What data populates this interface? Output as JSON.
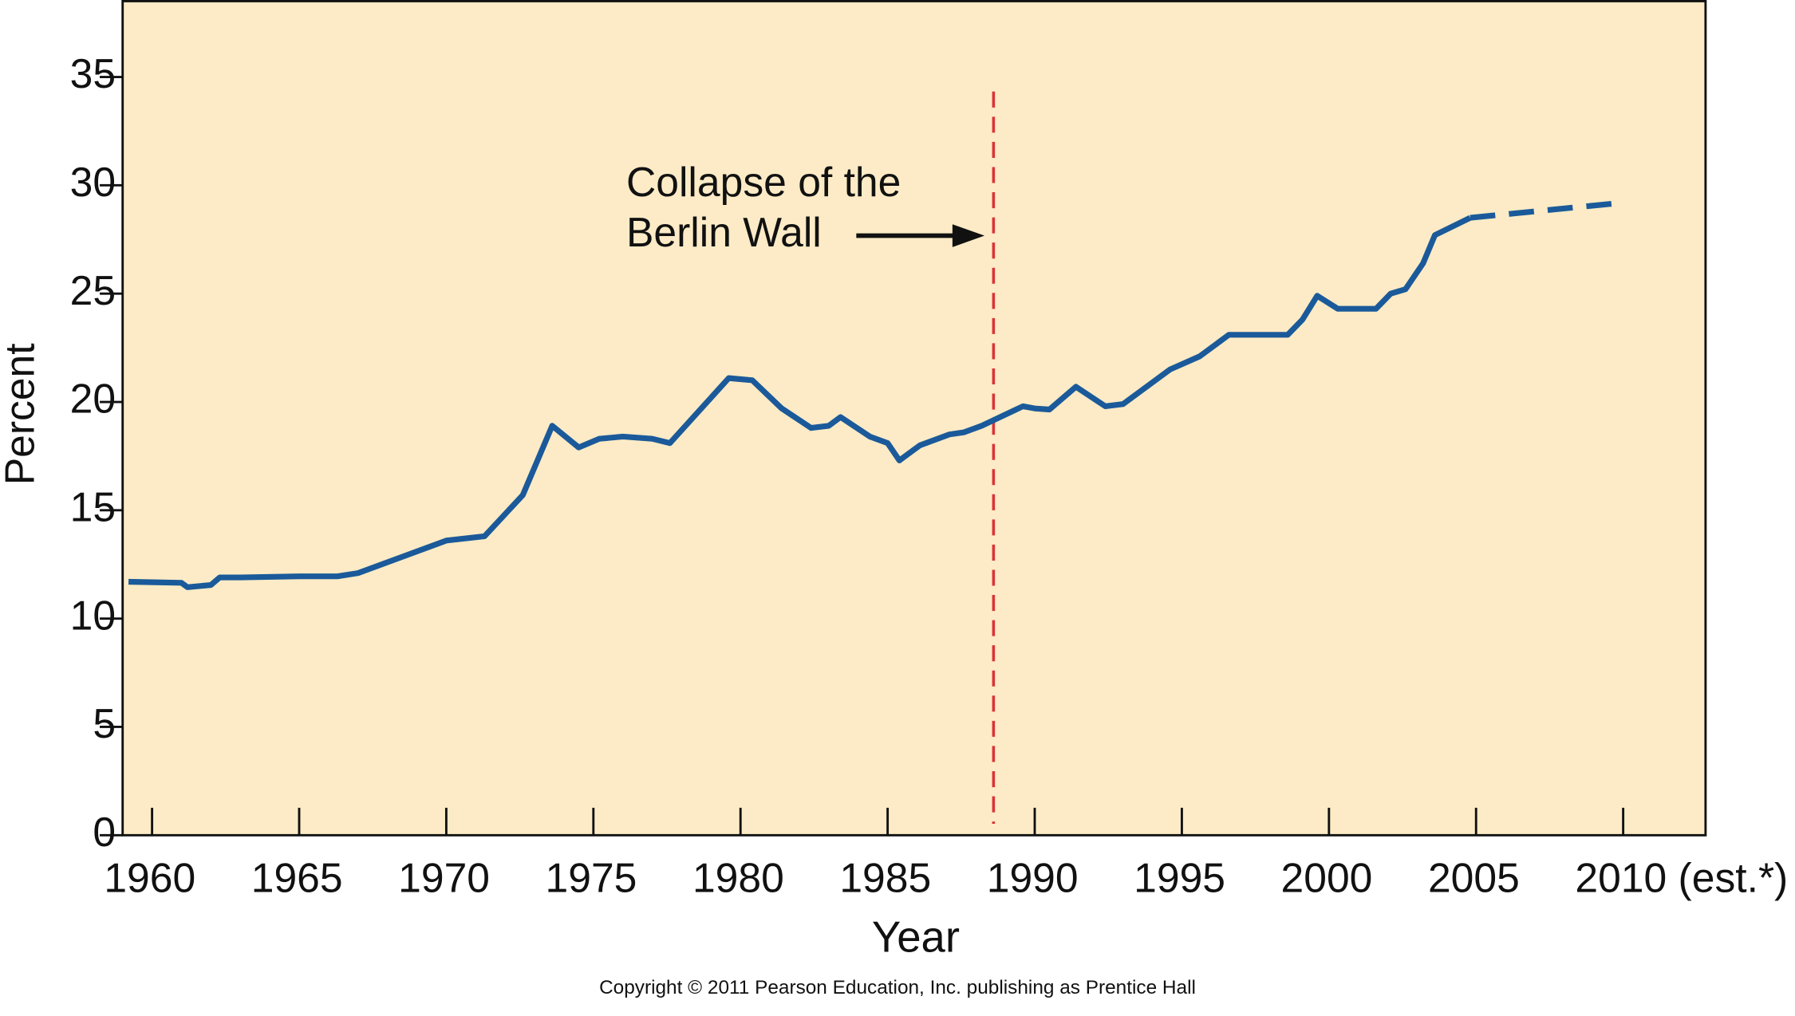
{
  "chart_data": {
    "type": "line",
    "x_label": "Year",
    "y_label": "Percent",
    "footer": "Copyright © 2011 Pearson Education, Inc. publishing as Prentice Hall",
    "xlim": [
      1959,
      2012.8
    ],
    "ylim": [
      0,
      38.5
    ],
    "xticks": [
      1960,
      1965,
      1970,
      1975,
      1980,
      1985,
      1990,
      1995,
      2000,
      2005,
      {
        "value": 2010,
        "label": "2010 (est.*)"
      }
    ],
    "yticks": [
      0,
      5,
      10,
      15,
      20,
      25,
      30,
      35
    ],
    "grid": false,
    "series": [
      {
        "color": "#1b5a9a",
        "dashed": false,
        "x": [
          1959.2,
          1961,
          1961.2,
          1962,
          1962.3,
          1963,
          1965,
          1966.3,
          1967,
          1970,
          1971.3,
          1972.6,
          1973.6,
          1974.5,
          1975.2,
          1976,
          1977,
          1977.6,
          1979.6,
          1980.4,
          1981.4,
          1982.4,
          1983,
          1983.4,
          1984.4,
          1985,
          1985.4,
          1986.1,
          1987.1,
          1987.6,
          1988.2,
          1989.6,
          1990,
          1990.5,
          1991.4,
          1992.4,
          1993,
          1994.6,
          1995.6,
          1996.6,
          1998.6,
          1999.1,
          1999.6,
          2000.3,
          2001.6,
          2002.1,
          2002.6,
          2003.2,
          2003.6,
          2004.8
        ],
        "values": [
          11.7,
          11.65,
          11.45,
          11.55,
          11.9,
          11.9,
          11.95,
          11.95,
          12.1,
          13.6,
          13.8,
          15.7,
          18.9,
          17.9,
          18.3,
          18.4,
          18.3,
          18.1,
          21.1,
          21.0,
          19.7,
          18.8,
          18.9,
          19.3,
          18.4,
          18.1,
          17.3,
          18.0,
          18.5,
          18.6,
          18.9,
          19.8,
          19.7,
          19.65,
          20.7,
          19.8,
          19.9,
          21.5,
          22.1,
          23.1,
          23.1,
          23.8,
          24.9,
          24.3,
          24.3,
          25.0,
          25.2,
          26.4,
          27.7,
          28.5
        ]
      },
      {
        "color": "#1b5a9a",
        "dashed": true,
        "x": [
          2004.8,
          2010
        ],
        "values": [
          28.5,
          29.2
        ]
      }
    ],
    "vline": {
      "x": 1988.6,
      "color": "#d9353a"
    },
    "annotation": [
      "Collapse of the",
      "Berlin Wall"
    ]
  }
}
